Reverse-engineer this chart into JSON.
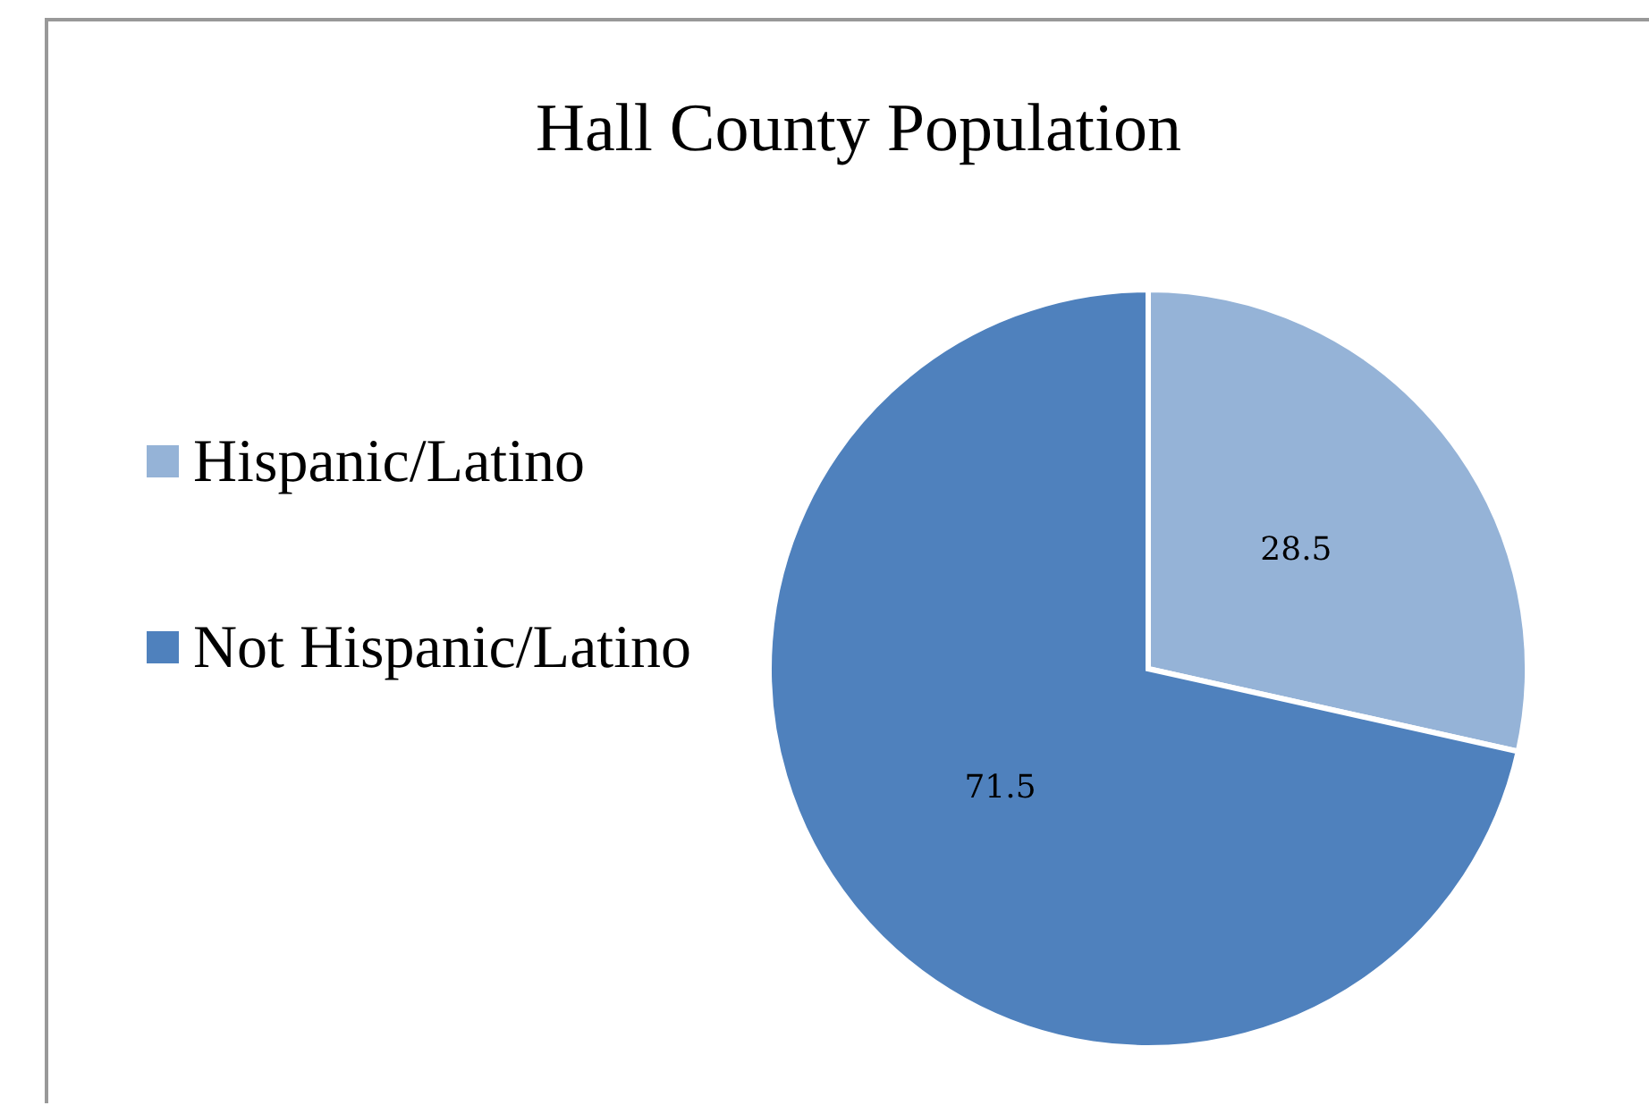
{
  "chart_data": {
    "type": "pie",
    "title": "Hall County Population",
    "categories": [
      "Hispanic/Latino",
      "Not Hispanic/Latino"
    ],
    "values": [
      28.5,
      71.5
    ],
    "colors": [
      "#95b3d7",
      "#4f81bd"
    ],
    "data_labels": true,
    "legend": "left"
  }
}
